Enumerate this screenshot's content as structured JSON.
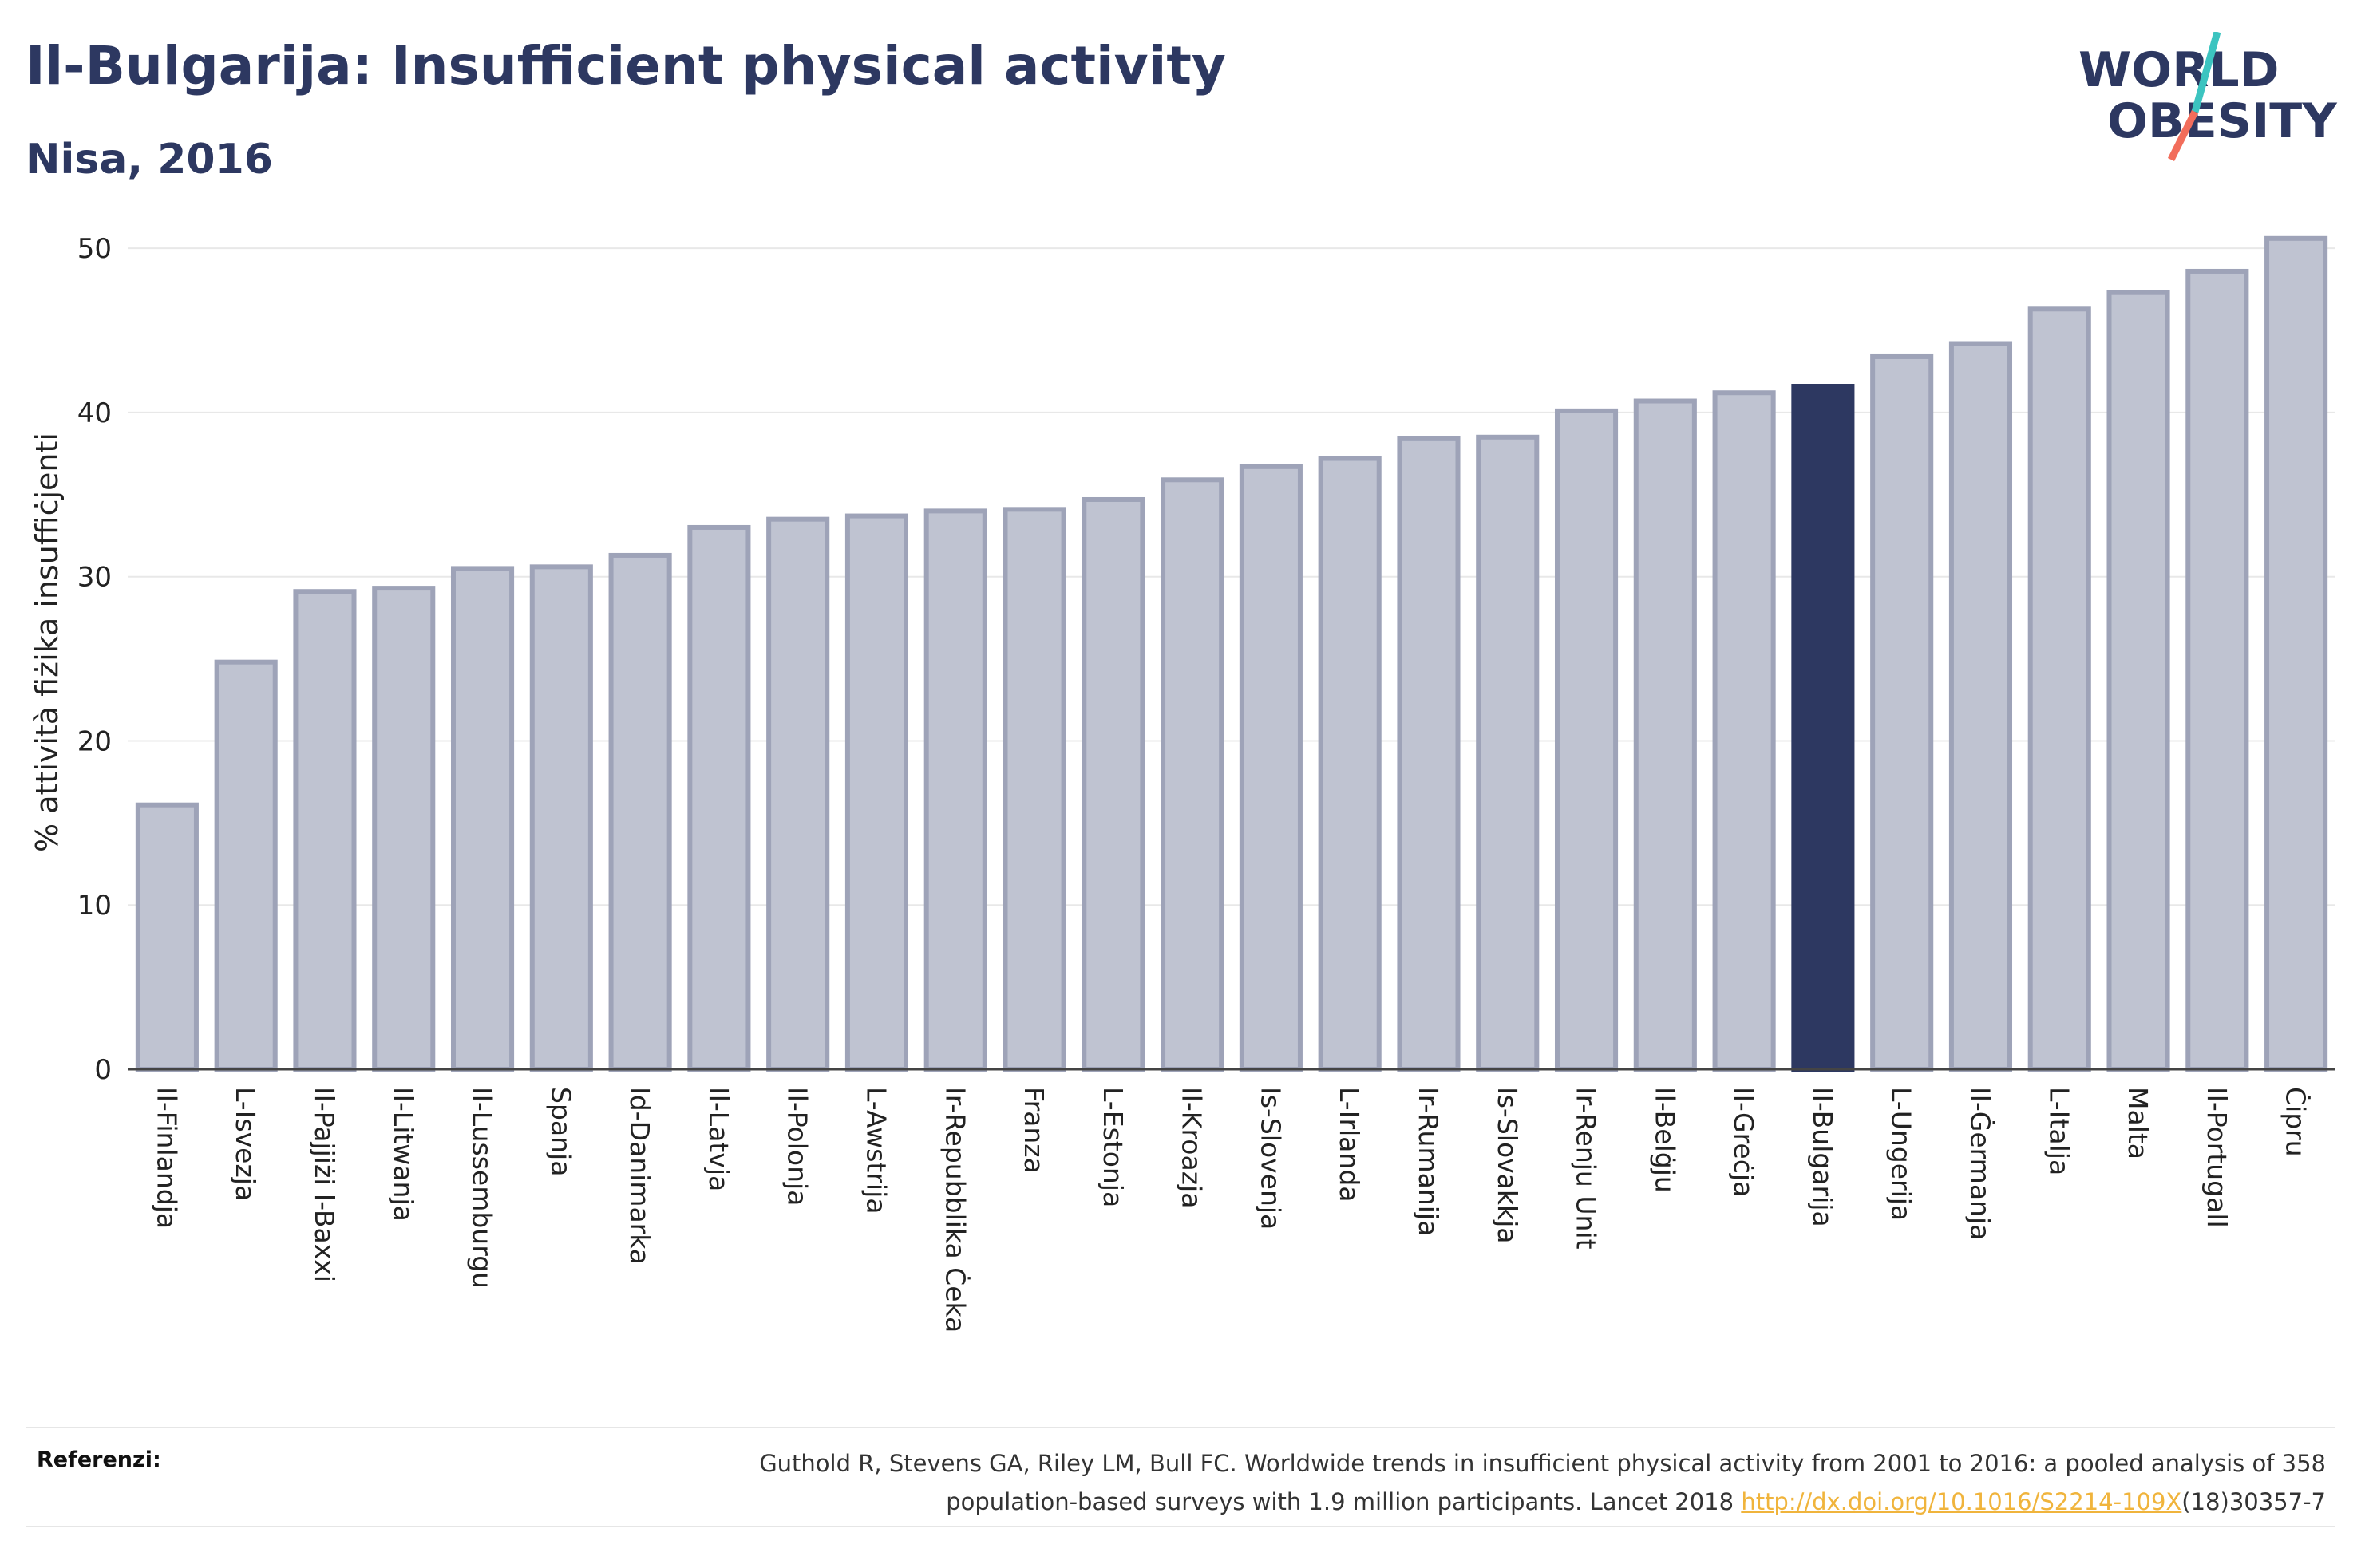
{
  "header": {
    "title": "Il-Bulgarija: Insufficient physical activity",
    "subtitle": "Nisa, 2016"
  },
  "logo": {
    "line1": "WORLD",
    "line2": "OBESITY",
    "slash_colors": [
      "#3cc4c0",
      "#f26d5b"
    ]
  },
  "colors": {
    "bar": "#bfc3d1",
    "bar_border": "#9ea3b8",
    "highlight": "#2d3861",
    "axis_text": "#222222",
    "grid": "#e8e8e8"
  },
  "chart_data": {
    "type": "bar",
    "ylabel": "% attività fiżika insuffiċjenti",
    "ylim": [
      0,
      52
    ],
    "yticks": [
      0,
      10,
      20,
      30,
      40,
      50
    ],
    "grid": true,
    "highlight": "Il-Bulgarija",
    "categories": [
      "Il-Finlandja",
      "L-Isvezja",
      "Il-Pajjiżi l-Baxxi",
      "Il-Litwanja",
      "Il-Lussemburgu",
      "Spanja",
      "Id-Danimarka",
      "Il-Latvja",
      "Il-Polonja",
      "L-Awstrija",
      "Ir-Repubblika Ċeka",
      "Franza",
      "L-Estonja",
      "Il-Kroazja",
      "Is-Slovenja",
      "L-Irlanda",
      "Ir-Rumanija",
      "Is-Slovakkja",
      "Ir-Renju Unit",
      "Il-Belġju",
      "Il-Greċja",
      "Il-Bulgarija",
      "L-Ungerija",
      "Il-Ġermanja",
      "L-Italja",
      "Malta",
      "Il-Portugall",
      "Ċipru"
    ],
    "values": [
      16.1,
      24.8,
      29.1,
      29.3,
      30.5,
      30.6,
      31.3,
      33.0,
      33.5,
      33.7,
      34.0,
      34.1,
      34.7,
      35.9,
      36.7,
      37.2,
      38.4,
      38.5,
      40.1,
      40.7,
      41.2,
      41.6,
      43.4,
      44.2,
      46.3,
      47.3,
      48.6,
      50.6
    ]
  },
  "references": {
    "label": "Referenzi:",
    "text_line1": "Guthold R, Stevens GA, Riley LM, Bull FC. Worldwide trends in insufficient physical activity from 2001 to 2016: a pooled analysis of 358",
    "text_line2_pre": "population-based surveys with 1.9 million participants. Lancet 2018 ",
    "link": "http://dx.doi.org/10.1016/S2214-109X",
    "text_line2_post": "(18)30357-7"
  }
}
